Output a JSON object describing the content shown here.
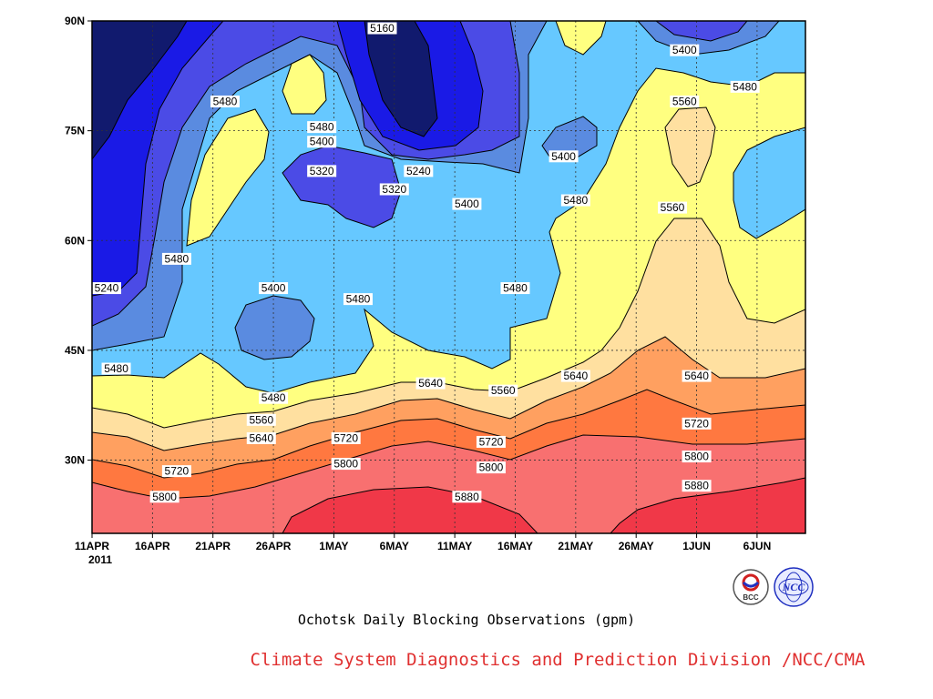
{
  "chart_data": {
    "type": "heatmap",
    "title": "Ochotsk Daily Blocking Observations (gpm)",
    "x_ticks": [
      "11APR",
      "16APR",
      "21APR",
      "26APR",
      "1MAY",
      "6MAY",
      "11MAY",
      "16MAY",
      "21MAY",
      "26MAY",
      "1JUN",
      "6JUN"
    ],
    "x_year_label": "2011",
    "y_ticks": [
      "90N",
      "75N",
      "60N",
      "45N",
      "30N"
    ],
    "x_range": [
      "2011-04-11",
      "2011-06-09"
    ],
    "y_range": [
      20,
      90
    ],
    "contour_levels": [
      5160,
      5240,
      5320,
      5400,
      5480,
      5560,
      5640,
      5720,
      5800,
      5880
    ],
    "contour_labels": [
      {
        "text": "5160",
        "date": "2011-05-05",
        "lat": 89
      },
      {
        "text": "5400",
        "date": "2011-05-30",
        "lat": 86
      },
      {
        "text": "5480",
        "date": "2011-06-04",
        "lat": 81
      },
      {
        "text": "5480",
        "date": "2011-04-22",
        "lat": 79
      },
      {
        "text": "5480",
        "date": "2011-04-30",
        "lat": 75.5
      },
      {
        "text": "5560",
        "date": "2011-05-30",
        "lat": 79
      },
      {
        "text": "5400",
        "date": "2011-04-30",
        "lat": 73.5
      },
      {
        "text": "5320",
        "date": "2011-04-30",
        "lat": 69.5
      },
      {
        "text": "5240",
        "date": "2011-05-08",
        "lat": 69.5
      },
      {
        "text": "5320",
        "date": "2011-05-06",
        "lat": 67
      },
      {
        "text": "5400",
        "date": "2011-05-20",
        "lat": 71.5
      },
      {
        "text": "5480",
        "date": "2011-05-21",
        "lat": 65.5
      },
      {
        "text": "5400",
        "date": "2011-05-12",
        "lat": 65
      },
      {
        "text": "5560",
        "date": "2011-05-29",
        "lat": 64.5
      },
      {
        "text": "5480",
        "date": "2011-04-18",
        "lat": 57.5
      },
      {
        "text": "5240",
        "date": "2011-04-11",
        "lat": 53.5
      },
      {
        "text": "5400",
        "date": "2011-04-26",
        "lat": 53.5
      },
      {
        "text": "5480",
        "date": "2011-05-03",
        "lat": 52
      },
      {
        "text": "5480",
        "date": "2011-05-16",
        "lat": 53.5
      },
      {
        "text": "5480",
        "date": "2011-04-13",
        "lat": 42.5
      },
      {
        "text": "5480",
        "date": "2011-04-26",
        "lat": 38.5
      },
      {
        "text": "5640",
        "date": "2011-05-09",
        "lat": 40.5
      },
      {
        "text": "5560",
        "date": "2011-05-15",
        "lat": 39.5
      },
      {
        "text": "5640",
        "date": "2011-05-21",
        "lat": 41.5
      },
      {
        "text": "5640",
        "date": "2011-05-31",
        "lat": 41.5
      },
      {
        "text": "5560",
        "date": "2011-04-25",
        "lat": 35.5
      },
      {
        "text": "5720",
        "date": "2011-05-02",
        "lat": 33
      },
      {
        "text": "5640",
        "date": "2011-04-25",
        "lat": 33
      },
      {
        "text": "5720",
        "date": "2011-05-14",
        "lat": 32.5
      },
      {
        "text": "5720",
        "date": "2011-05-31",
        "lat": 35
      },
      {
        "text": "5800",
        "date": "2011-05-02",
        "lat": 29.5
      },
      {
        "text": "5800",
        "date": "2011-05-14",
        "lat": 29
      },
      {
        "text": "5800",
        "date": "2011-05-31",
        "lat": 30.5
      },
      {
        "text": "5720",
        "date": "2011-04-18",
        "lat": 28.5
      },
      {
        "text": "5800",
        "date": "2011-04-17",
        "lat": 25
      },
      {
        "text": "5880",
        "date": "2011-05-12",
        "lat": 25
      },
      {
        "text": "5880",
        "date": "2011-05-31",
        "lat": 26.5
      }
    ],
    "grid": true,
    "band_colors": {
      "lt5160": "#111a6e",
      "b5160": "#1a1ae6",
      "b5240": "#4b4be6",
      "b5320": "#5a8be0",
      "b5400": "#66c8ff",
      "b5480": "#ffff80",
      "b5560": "#ffe0a0",
      "b5640": "#ffa060",
      "b5720": "#ff7840",
      "b5800": "#f87070",
      "b5880": "#f03848"
    }
  },
  "caption": {
    "title": "Ochotsk Daily Blocking Observations (gpm)",
    "credit": "Climate System Diagnostics and Prediction Division /NCC/CMA"
  },
  "logos": {
    "bcc_text": "BCC",
    "ncc_text": "NCC"
  }
}
